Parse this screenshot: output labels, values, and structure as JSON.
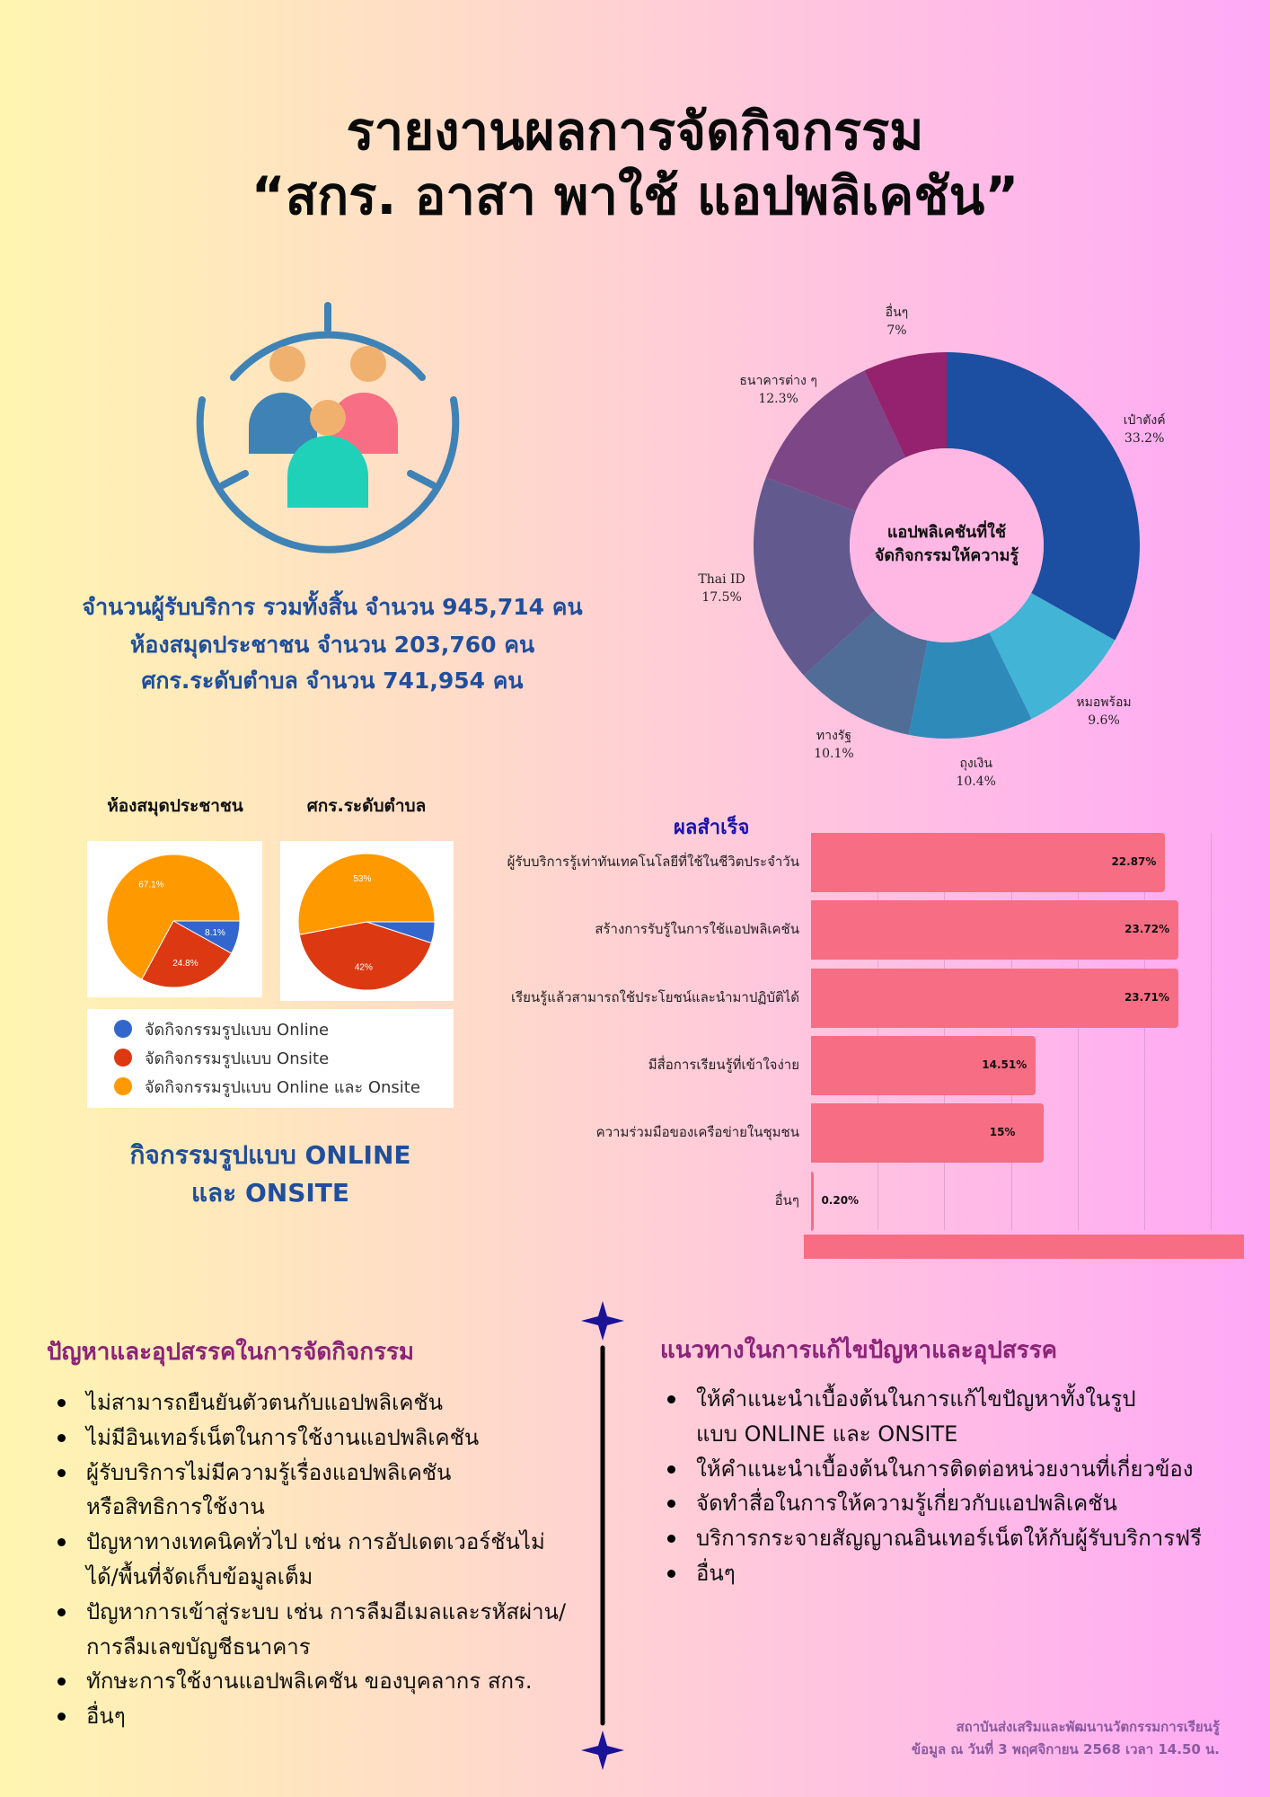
{
  "title": {
    "line1": "รายงานผลการจัดกิจกรรม",
    "line2": "“สกร. อาสา พาใช้ แอปพลิเคชัน”"
  },
  "icon": "people-group-icon",
  "stats": {
    "line1": "จำนวนผู้รับบริการ รวมทั้งสิ้น จำนวน 945,714 คน",
    "line2": "ห้องสมุดประชาชน จำนวน 203,760 คน",
    "line3": "ศกร.ระดับตำบล  จำนวน 741,954 คน"
  },
  "mode_section": {
    "title_line1": "กิจกรรมรูปแบบ ONLINE",
    "title_line2": "และ ONSITE",
    "legend": [
      {
        "label": "จัดกิจกรรมรูปแบบ Online",
        "color": "#3366cc"
      },
      {
        "label": "จัดกิจกรรมรูปแบบ Onsite",
        "color": "#dc3912"
      },
      {
        "label": "จัดกิจกรรมรูปแบบ Online และ Onsite",
        "color": "#ff9900"
      }
    ]
  },
  "chart_data": [
    {
      "type": "pie",
      "variant": "donut",
      "center_label_line1": "แอปพลิเคชันที่ใช้",
      "center_label_line2": "จัดกิจกรรมให้ความรู้",
      "slices": [
        {
          "label": "เป๋าตังค์",
          "value": 33.2,
          "value_label": "33.2%",
          "color": "#1c4fa1"
        },
        {
          "label": "หมอพร้อม",
          "value": 9.6,
          "value_label": "9.6%",
          "color": "#42b4d6"
        },
        {
          "label": "ถุงเงิน",
          "value": 10.4,
          "value_label": "10.4%",
          "color": "#2e8bb9"
        },
        {
          "label": "ทางรัฐ",
          "value": 10.1,
          "value_label": "10.1%",
          "color": "#4f6d97"
        },
        {
          "label": "Thai ID",
          "value": 17.5,
          "value_label": "17.5%",
          "color": "#625a8e"
        },
        {
          "label": "ธนาคารต่าง ๆ",
          "value": 12.3,
          "value_label": "12.3%",
          "color": "#7c4687"
        },
        {
          "label": "อื่นๆ",
          "value": 7,
          "value_label": "7%",
          "color": "#94226e"
        }
      ]
    },
    {
      "type": "pie",
      "title": "ห้องสมุดประชาชน",
      "slices": [
        {
          "series": "Online",
          "value": 8.1,
          "value_label": "8.1%",
          "color": "#3366cc"
        },
        {
          "series": "Onsite",
          "value": 24.8,
          "value_label": "24.8%",
          "color": "#dc3912"
        },
        {
          "series": "Online และ Onsite",
          "value": 67.1,
          "value_label": "67.1%",
          "color": "#ff9900"
        }
      ]
    },
    {
      "type": "pie",
      "title": "ศกร.ระดับตำบล",
      "slices": [
        {
          "series": "Online",
          "value": 5,
          "value_label": "",
          "color": "#3366cc"
        },
        {
          "series": "Onsite",
          "value": 42,
          "value_label": "42%",
          "color": "#dc3912"
        },
        {
          "series": "Online และ Onsite",
          "value": 53,
          "value_label": "53%",
          "color": "#ff9900"
        }
      ]
    },
    {
      "type": "bar",
      "orientation": "horizontal",
      "title": "ผลสำเร็จ",
      "categories": [
        "ผู้รับบริการรู้เท่าทันเทคโนโลยีที่ใช้ในชีวิตประจำวัน",
        "สร้างการรับรู้ในการใช้แอปพลิเคชัน",
        "เรียนรู้แล้วสามารถใช้ประโยชน์และนำมาปฏิบัติได้",
        "มีสื่อการเรียนรู้ที่เข้าใจง่าย",
        "ความร่วมมือของเครือข่ายในชุมชน",
        "อื่นๆ"
      ],
      "values": [
        22.87,
        23.72,
        23.71,
        14.51,
        15,
        0.2
      ],
      "value_labels": [
        "22.87%",
        "23.72%",
        "23.71%",
        "14.51%",
        "15%",
        "0.20%"
      ],
      "xlim": [
        0,
        25.8
      ],
      "grid": true,
      "bar_color": "#f76d83"
    }
  ],
  "problems": {
    "heading": "ปัญหาและอุปสรรคในการจัดกิจกรรม",
    "items": [
      "ไม่สามารถยืนยันตัวตนกับแอปพลิเคชัน",
      "ไม่มีอินเทอร์เน็ตในการใช้งานแอปพลิเคชัน",
      "ผู้รับบริการไม่มีความรู้เรื่องแอปพลิเคชัน หรือสิทธิการใช้งาน",
      "ปัญหาทางเทคนิคทั่วไป เช่น การอัปเดตเวอร์ชันไม่ได้/พื้นที่จัดเก็บข้อมูลเต็ม",
      "ปัญหาการเข้าสู่ระบบ เช่น การลืมอีเมลและรหัสผ่าน/การลืมเลขบัญชีธนาคาร",
      "ทักษะการใช้งานแอปพลิเคชัน ของบุคลากร สกร.",
      "อื่นๆ"
    ]
  },
  "solutions": {
    "heading": "แนวทางในการแก้ไขปัญหาและอุปสรรค",
    "items": [
      "ให้คำแนะนำเบื้องต้นในการแก้ไขปัญหาทั้งในรูปแบบ ONLINE และ ONSITE",
      "ให้คำแนะนำเบื้องต้นในการติดต่อหน่วยงานที่เกี่ยวข้อง",
      "จัดทำสื่อในการให้ความรู้เกี่ยวกับแอปพลิเคชัน",
      "บริการกระจายสัญญาณอินเทอร์เน็ตให้กับผู้รับบริการฟรี",
      "อื่นๆ"
    ]
  },
  "footer": {
    "line1": "สถาบันส่งเสริมและพัฒนานวัตกรรมการเรียนรู้",
    "line2": "ข้อมูล ณ วันที่ 3 พฤศจิกายน 2568 เวลา 14.50 น."
  },
  "colors": {
    "accent_blue": "#1f4e9c",
    "heading_purple": "#8c2378",
    "divider_navy": "#1a1297"
  }
}
